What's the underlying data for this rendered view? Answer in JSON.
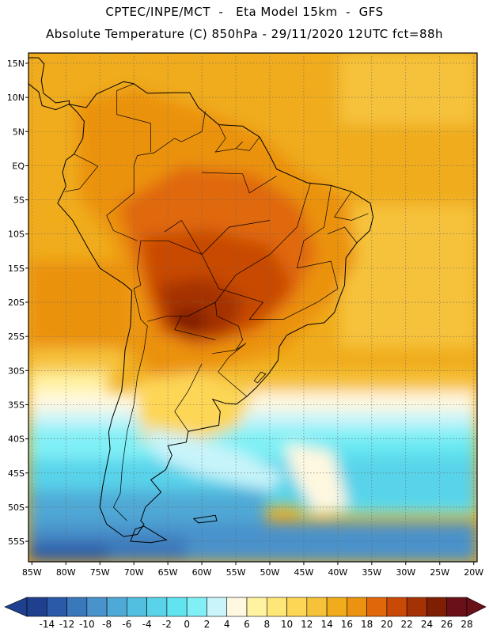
{
  "header": {
    "line1": "CPTEC/INPE/MCT  -   Eta Model 15km  -  GFS",
    "line2": "Absolute Temperature (C) 850hPa - 29/11/2020 12UTC fct=88h"
  },
  "map": {
    "lat_labels": [
      "15N",
      "10N",
      "5N",
      "EQ",
      "5S",
      "10S",
      "15S",
      "20S",
      "25S",
      "30S",
      "35S",
      "40S",
      "45S",
      "50S",
      "55S"
    ],
    "lon_labels": [
      "85W",
      "80W",
      "75W",
      "70W",
      "65W",
      "60W",
      "55W",
      "50W",
      "45W",
      "40W",
      "35W",
      "30W",
      "25W",
      "20W"
    ],
    "lat_values": [
      15,
      10,
      5,
      0,
      -5,
      -10,
      -15,
      -20,
      -25,
      -30,
      -35,
      -40,
      -45,
      -50,
      -55
    ],
    "lon_values": [
      -85,
      -80,
      -75,
      -70,
      -65,
      -60,
      -55,
      -50,
      -45,
      -40,
      -35,
      -30,
      -25,
      -20
    ],
    "grid": "dotted",
    "extent": {
      "lon_min": -85.5,
      "lon_max": -19.5,
      "lat_min": -58,
      "lat_max": 16.5
    }
  },
  "colorbar": {
    "labels": [
      "-14",
      "-12",
      "-10",
      "-8",
      "-6",
      "-4",
      "-2",
      "0",
      "2",
      "4",
      "6",
      "8",
      "10",
      "12",
      "14",
      "16",
      "18",
      "20",
      "22",
      "24",
      "26",
      "28"
    ],
    "colors": [
      "#1f3f8f",
      "#2a5aa8",
      "#3a78bc",
      "#4a92cb",
      "#4fa9d6",
      "#52bfe0",
      "#58d3ea",
      "#62e4f0",
      "#80f0f6",
      "#c8f4fa",
      "#fff8e0",
      "#fff2a0",
      "#ffe678",
      "#fdd656",
      "#f6c23a",
      "#f0ac1c",
      "#eb9210",
      "#e0680a",
      "#c84a06",
      "#a43204",
      "#7e1e02",
      "#6a1018"
    ]
  }
}
